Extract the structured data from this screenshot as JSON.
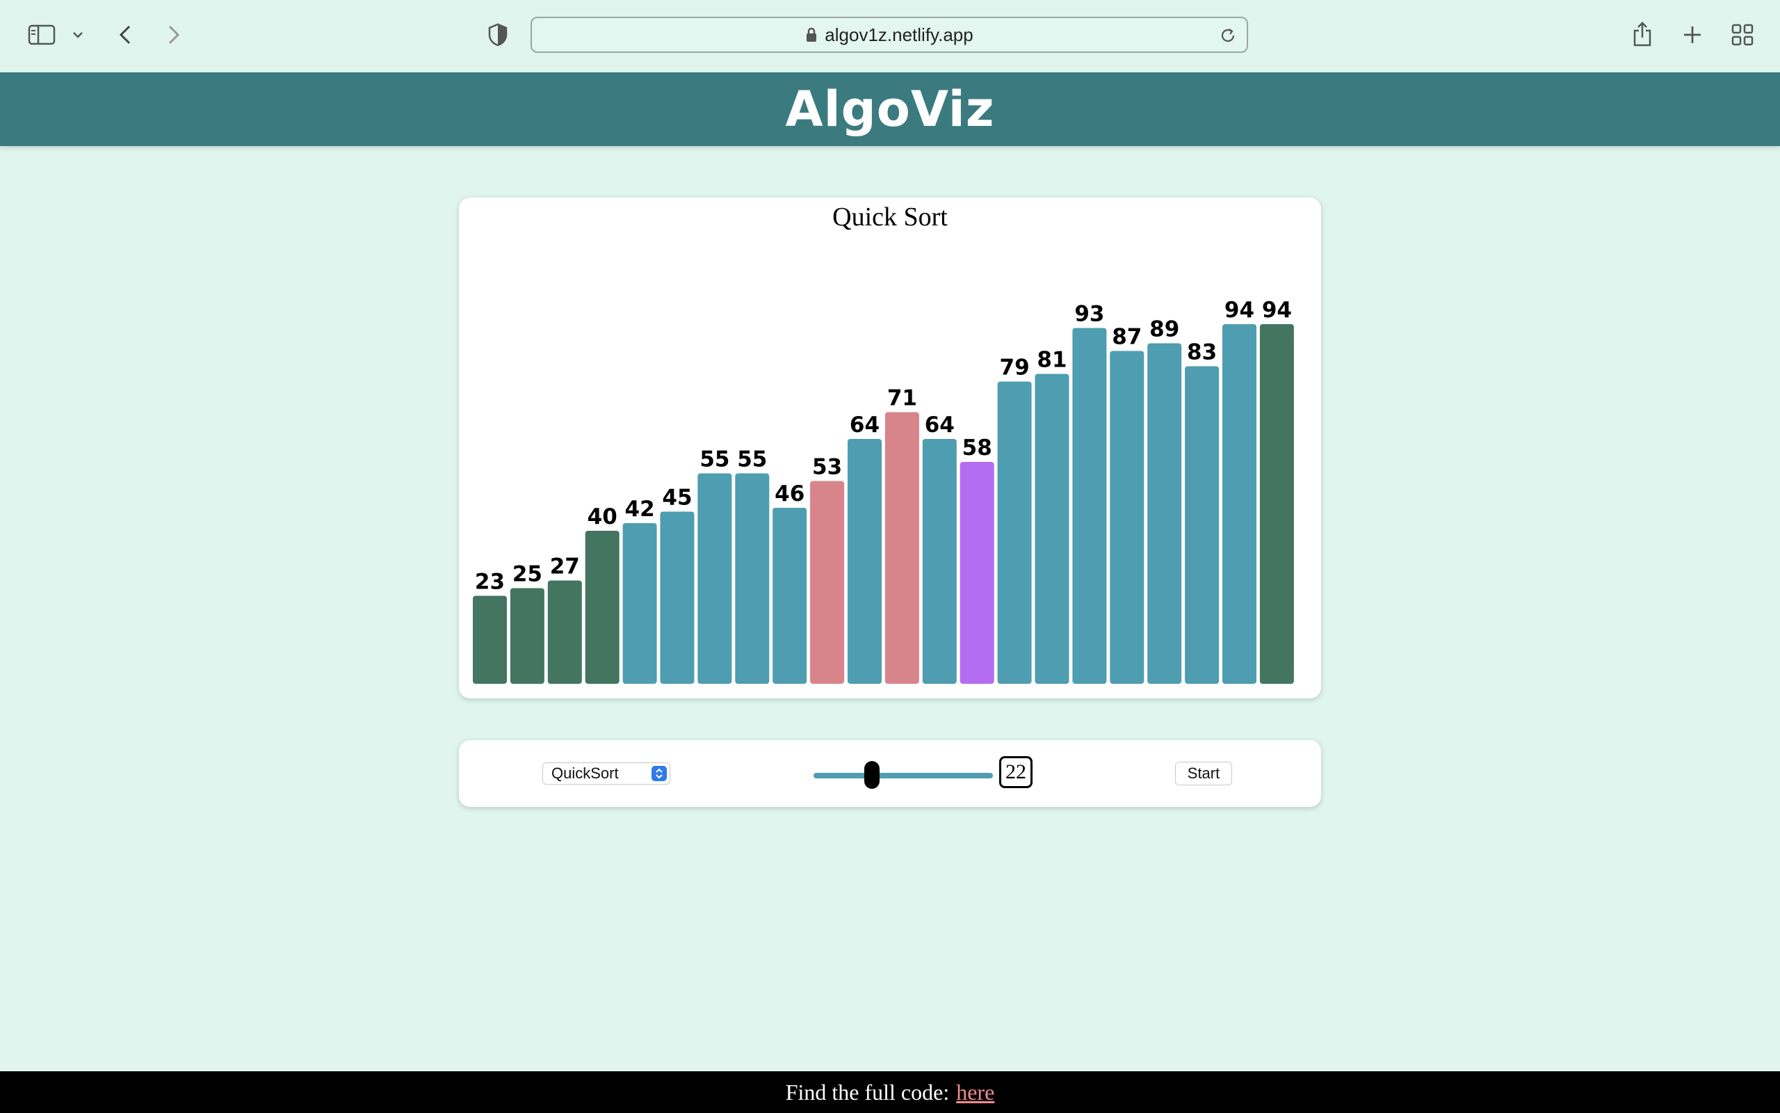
{
  "browser": {
    "url": "algov1z.netlify.app",
    "icons": [
      "sidebar-icon",
      "chevron-down-icon",
      "back-icon",
      "forward-icon",
      "shield-icon",
      "lock-icon",
      "reload-icon",
      "share-icon",
      "plus-icon",
      "tab-overview-icon"
    ]
  },
  "header": {
    "title": "AlgoViz",
    "background": "#3b7b80"
  },
  "chart_data": {
    "type": "bar",
    "title": "Quick Sort",
    "xlabel": "",
    "ylabel": "",
    "ylim": [
      0,
      100
    ],
    "grid": false,
    "values": [
      23,
      25,
      27,
      40,
      42,
      45,
      55,
      55,
      46,
      53,
      64,
      71,
      64,
      58,
      79,
      81,
      93,
      87,
      89,
      83,
      94,
      94
    ],
    "states": [
      "sorted",
      "sorted",
      "sorted",
      "sorted",
      "default",
      "default",
      "default",
      "default",
      "default",
      "compare",
      "default",
      "compare",
      "default",
      "pivot",
      "default",
      "default",
      "default",
      "default",
      "default",
      "default",
      "default",
      "sorted"
    ],
    "colors": {
      "default": "#4e9db0",
      "sorted": "#437561",
      "compare": "#d8848b",
      "pivot": "#b46cf2"
    }
  },
  "controls": {
    "algorithm": "QuickSort",
    "array_size": "22",
    "slider_fraction": 0.31,
    "start_label": "Start"
  },
  "footer": {
    "text": "Find the full code:",
    "link_text": "here"
  }
}
